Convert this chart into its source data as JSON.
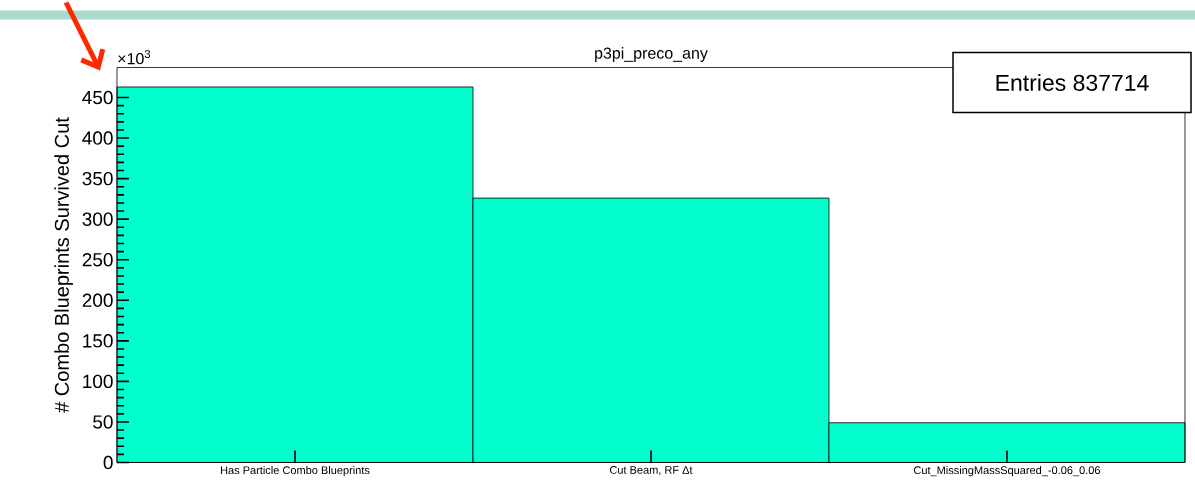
{
  "chart_data": {
    "type": "bar",
    "title": "p3pi_preco_any",
    "ylabel": "# Combo Blueprints Survived Cut",
    "categories": [
      "Has Particle Combo Blueprints",
      "Cut Beam, RF Δt",
      "Cut_MissingMassSquared_-0.06_0.06"
    ],
    "values": [
      463,
      326,
      49
    ],
    "color": "#00ffcc",
    "ylim": [
      0,
      487
    ],
    "yticks": [
      0,
      50,
      100,
      150,
      200,
      250,
      300,
      350,
      400,
      450
    ],
    "annotations": [
      "×10$^{3}$",
      "Entries  837714"
    ]
  }
}
